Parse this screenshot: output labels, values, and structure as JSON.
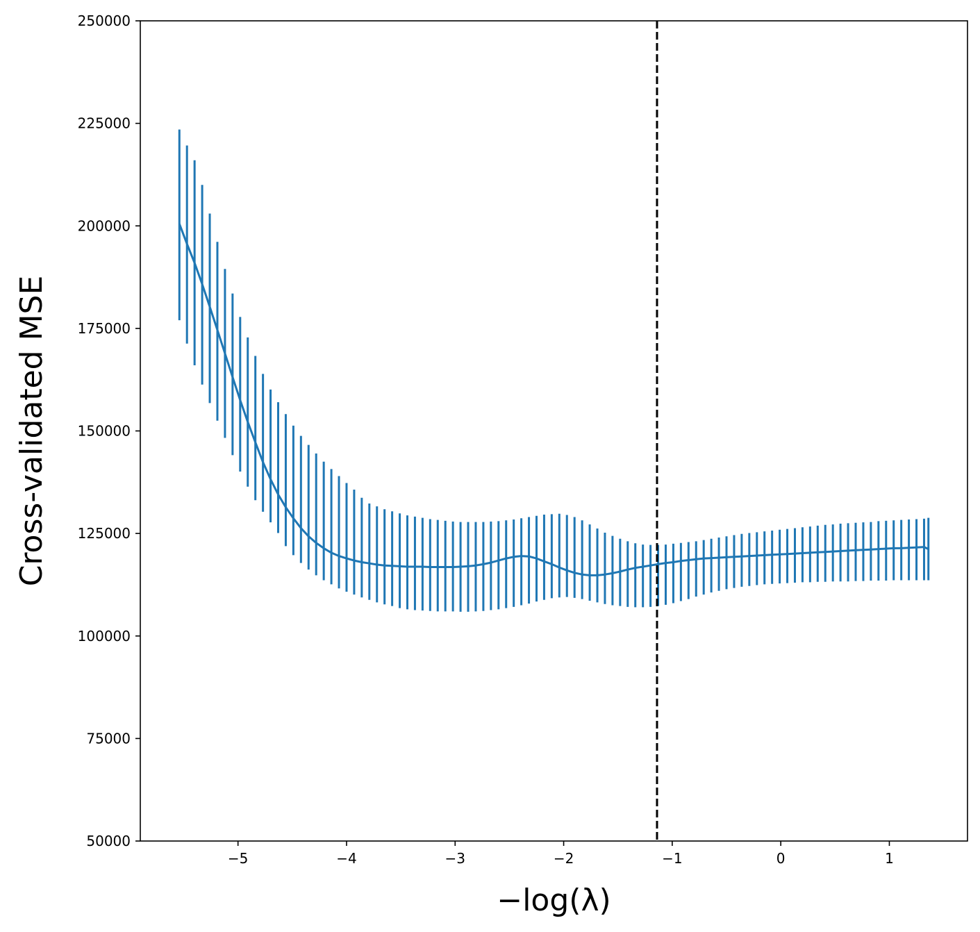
{
  "chart_data": {
    "type": "line",
    "title": "",
    "xlabel": "−log(λ)",
    "ylabel": "Cross-validated MSE",
    "xlim": [
      -5.9,
      1.72
    ],
    "ylim": [
      50000,
      250000
    ],
    "xticks": [
      -5,
      -4,
      -3,
      -2,
      -1,
      0,
      1
    ],
    "xtick_labels": [
      "−5",
      "−4",
      "−3",
      "−2",
      "−1",
      "0",
      "1"
    ],
    "yticks": [
      50000,
      75000,
      100000,
      125000,
      150000,
      175000,
      200000,
      225000,
      250000
    ],
    "ytick_labels": [
      "50000",
      "75000",
      "100000",
      "125000",
      "150000",
      "175000",
      "200000",
      "225000",
      "250000"
    ],
    "grid": false,
    "legend": "none",
    "colors": {
      "series": "#1f77b4",
      "reference_line": "#000000"
    },
    "reference_line": {
      "orientation": "vertical",
      "x": -1.14,
      "style": "dashed"
    },
    "series": [
      {
        "x": [
          -5.54,
          -5.47,
          -5.4,
          -5.33,
          -5.26,
          -5.19,
          -5.12,
          -5.05,
          -4.98,
          -4.91,
          -4.84,
          -4.77,
          -4.7,
          -4.63,
          -4.56,
          -4.49,
          -4.42,
          -4.35,
          -4.28,
          -4.21,
          -4.14,
          -4.07,
          -4.0,
          -3.93,
          -3.86,
          -3.79,
          -3.72,
          -3.65,
          -3.58,
          -3.51,
          -3.44,
          -3.37,
          -3.3,
          -3.23,
          -3.16,
          -3.09,
          -3.02,
          -2.95,
          -2.88,
          -2.81,
          -2.74,
          -2.67,
          -2.6,
          -2.53,
          -2.46,
          -2.39,
          -2.32,
          -2.25,
          -2.18,
          -2.11,
          -2.04,
          -1.97,
          -1.9,
          -1.83,
          -1.76,
          -1.69,
          -1.62,
          -1.55,
          -1.48,
          -1.41,
          -1.34,
          -1.27,
          -1.2,
          -1.13,
          -1.06,
          -0.99,
          -0.92,
          -0.85,
          -0.78,
          -0.71,
          -0.64,
          -0.57,
          -0.5,
          -0.43,
          -0.36,
          -0.29,
          -0.22,
          -0.15,
          -0.08,
          -0.01,
          0.06,
          0.13,
          0.2,
          0.27,
          0.34,
          0.41,
          0.48,
          0.55,
          0.62,
          0.69,
          0.76,
          0.83,
          0.9,
          0.97,
          1.04,
          1.11,
          1.18,
          1.25,
          1.32,
          1.36
        ],
        "mean": [
          200500,
          195600,
          191000,
          185800,
          180300,
          174600,
          168900,
          163100,
          157500,
          152200,
          147200,
          142400,
          138200,
          134500,
          131400,
          128700,
          126300,
          124300,
          122700,
          121400,
          120300,
          119500,
          118900,
          118400,
          118000,
          117700,
          117400,
          117200,
          117100,
          117000,
          116900,
          116900,
          116900,
          116800,
          116800,
          116800,
          116800,
          116900,
          117000,
          117200,
          117500,
          117900,
          118400,
          118900,
          119300,
          119500,
          119400,
          118900,
          118200,
          117500,
          116700,
          116000,
          115400,
          115000,
          114800,
          114800,
          115000,
          115300,
          115700,
          116200,
          116600,
          116900,
          117200,
          117500,
          117800,
          118000,
          118300,
          118500,
          118700,
          118900,
          119000,
          119100,
          119200,
          119300,
          119400,
          119500,
          119600,
          119700,
          119800,
          119900,
          120000,
          120100,
          120200,
          120300,
          120400,
          120500,
          120600,
          120700,
          120800,
          120900,
          121000,
          121100,
          121200,
          121300,
          121400,
          121400,
          121500,
          121600,
          121700,
          121200
        ],
        "lower": [
          177000,
          171300,
          166000,
          161300,
          156800,
          152500,
          148300,
          144100,
          140100,
          136400,
          133100,
          130300,
          127700,
          125100,
          121900,
          119700,
          117800,
          116200,
          114800,
          113600,
          112600,
          111600,
          110800,
          110100,
          109400,
          108800,
          108200,
          107700,
          107300,
          106800,
          106500,
          106300,
          106200,
          106100,
          106000,
          106000,
          106000,
          105900,
          105900,
          106000,
          106100,
          106300,
          106500,
          106800,
          107100,
          107500,
          107900,
          108400,
          108800,
          109200,
          109400,
          109500,
          109300,
          109000,
          108600,
          108200,
          107800,
          107500,
          107300,
          107100,
          107000,
          107000,
          107100,
          107300,
          107600,
          108000,
          108500,
          109000,
          109600,
          110100,
          110600,
          111000,
          111400,
          111700,
          112000,
          112200,
          112400,
          112600,
          112700,
          112800,
          112900,
          113000,
          113100,
          113100,
          113200,
          113200,
          113300,
          113300,
          113300,
          113400,
          113400,
          113500,
          113500,
          113500,
          113600,
          113600,
          113600,
          113600,
          113600,
          113600
        ],
        "upper": [
          223500,
          219600,
          216000,
          210000,
          203000,
          196100,
          189500,
          183500,
          177800,
          172800,
          168300,
          163900,
          160100,
          157000,
          154100,
          151300,
          148800,
          146600,
          144500,
          142500,
          140700,
          139000,
          137300,
          135700,
          133700,
          132300,
          131600,
          130900,
          130400,
          129900,
          129400,
          129100,
          128800,
          128500,
          128300,
          128100,
          127900,
          127800,
          127800,
          127800,
          127800,
          127900,
          128000,
          128200,
          128400,
          128700,
          129000,
          129300,
          129600,
          129700,
          129800,
          129500,
          129000,
          128200,
          127200,
          126200,
          125200,
          124400,
          123700,
          123100,
          122600,
          122300,
          122200,
          122200,
          122300,
          122500,
          122700,
          122900,
          123100,
          123400,
          123700,
          124000,
          124300,
          124600,
          124900,
          125100,
          125300,
          125500,
          125700,
          125900,
          126100,
          126300,
          126500,
          126700,
          126900,
          127100,
          127200,
          127400,
          127500,
          127600,
          127700,
          127800,
          128000,
          128100,
          128200,
          128300,
          128400,
          128500,
          128600,
          128800
        ]
      }
    ]
  }
}
